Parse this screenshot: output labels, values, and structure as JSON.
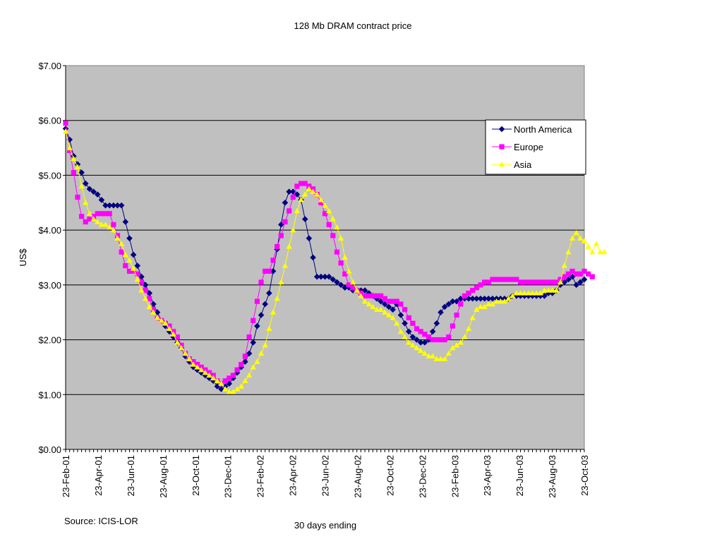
{
  "chart_data": {
    "type": "line",
    "title": "128 Mb DRAM contract price",
    "xlabel": "30 days ending",
    "ylabel": "US$",
    "source": "Source: ICIS-LOR",
    "ylim": [
      0,
      7
    ],
    "y_ticks": [
      "$0.00",
      "$1.00",
      "$2.00",
      "$3.00",
      "$4.00",
      "$5.00",
      "$6.00",
      "$7.00"
    ],
    "x_ticks": [
      "23-Feb-01",
      "23-Apr-01",
      "23-Jun-01",
      "23-Aug-01",
      "23-Oct-01",
      "23-Dec-01",
      "23-Feb-02",
      "23-Apr-02",
      "23-Jun-02",
      "23-Aug-02",
      "23-Oct-02",
      "23-Dec-02",
      "23-Feb-03",
      "23-Apr-03",
      "23-Jun-03",
      "23-Aug-03",
      "23-Oct-03"
    ],
    "plot_background": "#c0c0c0",
    "grid": true,
    "legend_position": "top-right",
    "series": [
      {
        "name": "North America",
        "color": "#000080",
        "marker": "diamond",
        "values": [
          5.85,
          5.65,
          5.35,
          5.2,
          5.05,
          4.85,
          4.75,
          4.7,
          4.65,
          4.55,
          4.45,
          4.45,
          4.45,
          4.45,
          4.45,
          4.15,
          3.85,
          3.55,
          3.35,
          3.15,
          3.0,
          2.85,
          2.65,
          2.5,
          2.35,
          2.25,
          2.15,
          2.05,
          1.95,
          1.85,
          1.7,
          1.6,
          1.5,
          1.45,
          1.4,
          1.35,
          1.3,
          1.25,
          1.15,
          1.1,
          1.15,
          1.2,
          1.3,
          1.4,
          1.5,
          1.6,
          1.75,
          1.95,
          2.25,
          2.45,
          2.65,
          2.85,
          3.25,
          3.65,
          4.1,
          4.5,
          4.7,
          4.7,
          4.65,
          4.55,
          4.2,
          3.85,
          3.5,
          3.15,
          3.15,
          3.15,
          3.15,
          3.1,
          3.05,
          3.0,
          2.95,
          2.95,
          2.9,
          2.9,
          2.9,
          2.9,
          2.85,
          2.8,
          2.75,
          2.7,
          2.65,
          2.6,
          2.55,
          2.65,
          2.45,
          2.3,
          2.15,
          2.05,
          2.0,
          1.95,
          1.95,
          2.0,
          2.15,
          2.3,
          2.5,
          2.6,
          2.65,
          2.7,
          2.7,
          2.75,
          2.75,
          2.75,
          2.75,
          2.75,
          2.75,
          2.75,
          2.75,
          2.75,
          2.75,
          2.75,
          2.75,
          2.75,
          2.8,
          2.8,
          2.8,
          2.8,
          2.8,
          2.8,
          2.8,
          2.8,
          2.8,
          2.85,
          2.85,
          2.9,
          3.0,
          3.05,
          3.1,
          3.15,
          3.0,
          3.05,
          3.1
        ]
      },
      {
        "name": "Europe",
        "color": "#ff00ff",
        "marker": "square",
        "values": [
          5.95,
          5.45,
          5.05,
          4.6,
          4.25,
          4.15,
          4.2,
          4.25,
          4.3,
          4.3,
          4.3,
          4.3,
          4.1,
          3.9,
          3.6,
          3.35,
          3.25,
          3.25,
          3.2,
          3.05,
          2.9,
          2.75,
          2.55,
          2.4,
          2.35,
          2.3,
          2.25,
          2.15,
          2.05,
          1.9,
          1.75,
          1.65,
          1.6,
          1.55,
          1.5,
          1.45,
          1.4,
          1.35,
          1.25,
          1.2,
          1.25,
          1.3,
          1.35,
          1.45,
          1.55,
          1.7,
          2.05,
          2.35,
          2.7,
          3.05,
          3.25,
          3.25,
          3.45,
          3.7,
          3.9,
          4.15,
          4.35,
          4.6,
          4.8,
          4.85,
          4.85,
          4.8,
          4.75,
          4.65,
          4.5,
          4.3,
          4.1,
          3.9,
          3.6,
          3.4,
          3.2,
          3.0,
          2.95,
          2.9,
          2.85,
          2.8,
          2.8,
          2.8,
          2.8,
          2.8,
          2.75,
          2.7,
          2.7,
          2.7,
          2.65,
          2.55,
          2.4,
          2.3,
          2.2,
          2.15,
          2.1,
          2.05,
          2.0,
          2.0,
          2.0,
          2.0,
          2.05,
          2.25,
          2.45,
          2.65,
          2.8,
          2.85,
          2.9,
          2.95,
          3.0,
          3.05,
          3.05,
          3.1,
          3.1,
          3.1,
          3.1,
          3.1,
          3.1,
          3.1,
          3.05,
          3.05,
          3.05,
          3.05,
          3.05,
          3.05,
          3.05,
          3.05,
          3.05,
          3.05,
          3.1,
          3.15,
          3.2,
          3.25,
          3.2,
          3.2,
          3.25,
          3.2,
          3.15
        ]
      },
      {
        "name": "Asia",
        "color": "#ffff00",
        "marker": "triangle",
        "values": [
          5.8,
          5.5,
          5.3,
          5.15,
          4.8,
          4.5,
          4.3,
          4.2,
          4.15,
          4.1,
          4.1,
          4.05,
          4.0,
          3.85,
          3.75,
          3.55,
          3.45,
          3.3,
          3.1,
          2.9,
          2.75,
          2.6,
          2.5,
          2.4,
          2.35,
          2.3,
          2.2,
          2.1,
          1.95,
          1.85,
          1.75,
          1.65,
          1.55,
          1.5,
          1.45,
          1.4,
          1.35,
          1.3,
          1.25,
          1.2,
          1.1,
          1.05,
          1.05,
          1.1,
          1.15,
          1.25,
          1.35,
          1.5,
          1.6,
          1.75,
          1.9,
          2.2,
          2.5,
          2.75,
          3.05,
          3.35,
          3.7,
          4.0,
          4.35,
          4.55,
          4.65,
          4.75,
          4.7,
          4.65,
          4.55,
          4.45,
          4.35,
          4.2,
          4.05,
          3.85,
          3.5,
          3.25,
          3.05,
          2.9,
          2.8,
          2.7,
          2.65,
          2.6,
          2.55,
          2.55,
          2.5,
          2.45,
          2.4,
          2.3,
          2.15,
          2.05,
          1.95,
          1.9,
          1.85,
          1.8,
          1.75,
          1.7,
          1.7,
          1.65,
          1.65,
          1.65,
          1.75,
          1.85,
          1.9,
          1.95,
          2.05,
          2.2,
          2.4,
          2.55,
          2.6,
          2.6,
          2.65,
          2.65,
          2.7,
          2.7,
          2.7,
          2.75,
          2.8,
          2.85,
          2.85,
          2.85,
          2.85,
          2.85,
          2.85,
          2.85,
          2.9,
          2.9,
          2.9,
          2.9,
          3.05,
          3.35,
          3.6,
          3.85,
          3.95,
          3.85,
          3.8,
          3.7,
          3.6,
          3.75,
          3.6,
          3.6
        ]
      }
    ]
  }
}
